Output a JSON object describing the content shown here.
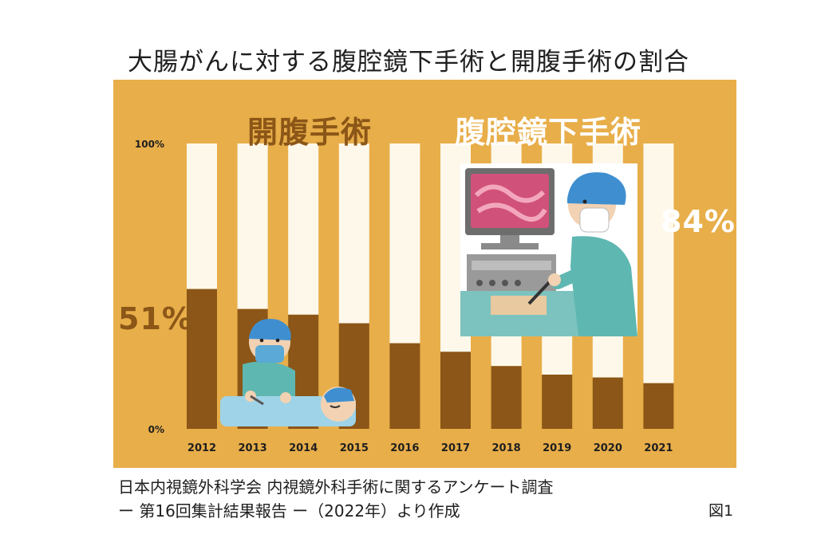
{
  "title": "大腸がんに対する腹腔鏡下手術と開腹手術の割合",
  "labels": {
    "open_surgery": "開腹手術",
    "laparoscopic_surgery": "腹腔鏡下手術",
    "pct_2012": "51%",
    "pct_2021": "84%"
  },
  "source": {
    "line1": "日本内視鏡外科学会 内視鏡外科手術に関するアンケート調査",
    "line2": "ー 第16回集計結果報告 ー（2022年）より作成"
  },
  "figure_label": "図1",
  "colors": {
    "background": "#e8ae49",
    "open_surgery": "#8b5617",
    "laparoscopic_surgery": "#fdf8ea"
  },
  "chart_data": {
    "type": "bar",
    "stacked": true,
    "categories": [
      "2012",
      "2013",
      "2014",
      "2015",
      "2016",
      "2017",
      "2018",
      "2019",
      "2020",
      "2021"
    ],
    "series": [
      {
        "name": "開腹手術",
        "values": [
          49,
          42,
          40,
          37,
          30,
          27,
          22,
          19,
          18,
          16
        ]
      },
      {
        "name": "腹腔鏡下手術",
        "values": [
          51,
          58,
          60,
          63,
          70,
          73,
          78,
          81,
          82,
          84
        ]
      }
    ],
    "ytick_labels": [
      "100%",
      "0%"
    ],
    "ylim": [
      0,
      100
    ],
    "grid": false,
    "xlabel": "",
    "ylabel": ""
  }
}
